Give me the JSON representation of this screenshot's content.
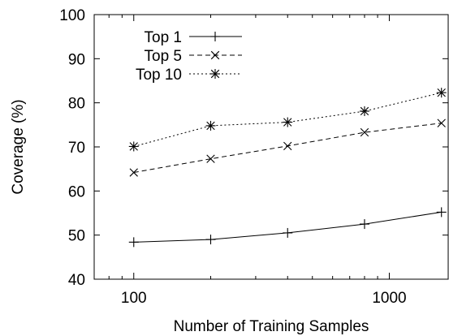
{
  "chart_data": {
    "type": "line",
    "xlabel": "Number of Training Samples",
    "ylabel": "Coverage (%)",
    "xscale": "log",
    "xlim": [
      70,
      1700
    ],
    "ylim": [
      40,
      100
    ],
    "xticks": [
      100,
      1000
    ],
    "yticks": [
      40,
      50,
      60,
      70,
      80,
      90,
      100
    ],
    "grid": false,
    "legend_position": "top-left",
    "x": [
      100,
      200,
      400,
      800,
      1600
    ],
    "series": [
      {
        "name": "Top 1",
        "marker": "plus",
        "dash": "solid",
        "values": [
          48.4,
          49.0,
          50.5,
          52.5,
          55.2
        ]
      },
      {
        "name": "Top 5",
        "marker": "cross",
        "dash": "dashed",
        "values": [
          64.2,
          67.3,
          70.2,
          73.3,
          75.4
        ]
      },
      {
        "name": "Top 10",
        "marker": "star",
        "dash": "dotted",
        "values": [
          70.1,
          74.8,
          75.6,
          78.1,
          82.3
        ]
      }
    ]
  }
}
